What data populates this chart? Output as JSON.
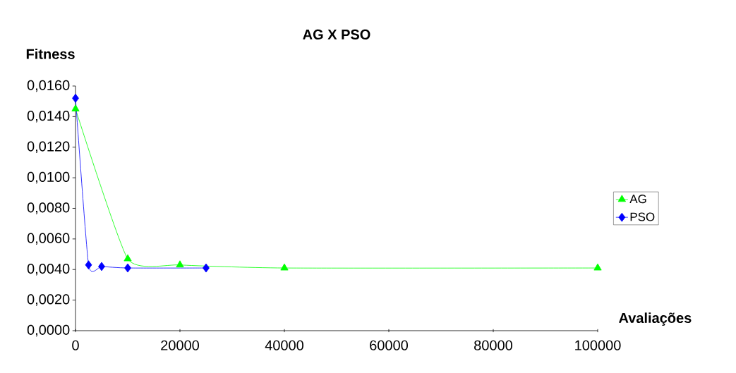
{
  "chart_data": {
    "type": "line",
    "title": "AG X PSO",
    "xlabel": "Avaliações",
    "ylabel": "Fitness",
    "series": [
      {
        "name": "AG",
        "color": "#00ff00",
        "marker": "triangle",
        "x": [
          0,
          10000,
          20000,
          40000,
          100000
        ],
        "values": [
          0.0145,
          0.0047,
          0.0043,
          0.0041,
          0.0041
        ]
      },
      {
        "name": "PSO",
        "color": "#0000ff",
        "marker": "diamond",
        "x": [
          0,
          2500,
          5000,
          10000,
          25000
        ],
        "values": [
          0.0152,
          0.0043,
          0.0042,
          0.0041,
          0.0041
        ]
      }
    ],
    "xlim": [
      0,
      100000
    ],
    "xticks": [
      0,
      20000,
      40000,
      60000,
      80000,
      100000
    ],
    "ylim": [
      0,
      0.016
    ],
    "yticks": [
      {
        "value": 0,
        "label": "0,0000"
      },
      {
        "value": 0.002,
        "label": "0,0020"
      },
      {
        "value": 0.004,
        "label": "0,0040"
      },
      {
        "value": 0.006,
        "label": "0,0060"
      },
      {
        "value": 0.008,
        "label": "0,0080"
      },
      {
        "value": 0.01,
        "label": "0,0100"
      },
      {
        "value": 0.012,
        "label": "0,0120"
      },
      {
        "value": 0.014,
        "label": "0,0140"
      },
      {
        "value": 0.016,
        "label": "0,0160"
      }
    ],
    "grid": false,
    "legend": "right",
    "line_style": "solid"
  }
}
